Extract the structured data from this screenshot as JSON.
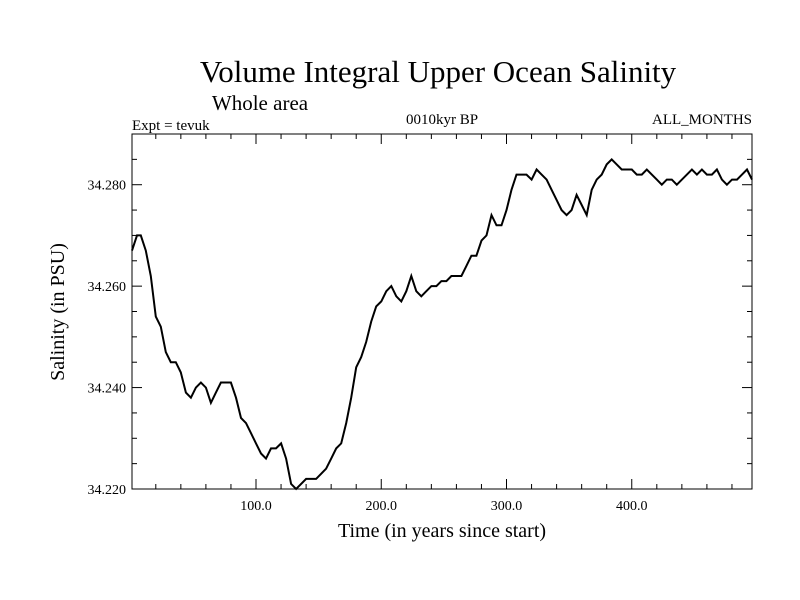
{
  "chart_data": {
    "type": "line",
    "title": "Volume Integral Upper Ocean Salinity",
    "subtitle": "Whole area",
    "expt_label": "Expt = tevuk",
    "period_label": "0010kyr BP",
    "months_label": "ALL_MONTHS",
    "xlabel": "Time (in years since start)",
    "ylabel": "Salinity (in PSU)",
    "xlim": [
      1,
      496
    ],
    "ylim": [
      34.22,
      34.29
    ],
    "x_ticks": [
      100,
      200,
      300,
      400
    ],
    "x_tick_labels": [
      "100.0",
      "200.0",
      "300.0",
      "400.0"
    ],
    "y_ticks": [
      34.22,
      34.24,
      34.26,
      34.28
    ],
    "y_tick_labels": [
      "34.220",
      "34.240",
      "34.260",
      "34.280"
    ],
    "grid": false,
    "series": [
      {
        "name": "Salinity",
        "x": [
          1,
          5,
          8,
          12,
          16,
          20,
          24,
          28,
          32,
          36,
          40,
          44,
          48,
          52,
          56,
          60,
          64,
          68,
          72,
          76,
          80,
          84,
          88,
          92,
          96,
          100,
          104,
          108,
          112,
          116,
          120,
          124,
          128,
          132,
          136,
          140,
          144,
          148,
          152,
          156,
          160,
          164,
          168,
          172,
          176,
          180,
          184,
          188,
          192,
          196,
          200,
          204,
          208,
          212,
          216,
          220,
          224,
          228,
          232,
          236,
          240,
          244,
          248,
          252,
          256,
          260,
          264,
          268,
          272,
          276,
          280,
          284,
          288,
          292,
          296,
          300,
          304,
          308,
          312,
          316,
          320,
          324,
          328,
          332,
          336,
          340,
          344,
          348,
          352,
          356,
          360,
          364,
          368,
          372,
          376,
          380,
          384,
          388,
          392,
          396,
          400,
          404,
          408,
          412,
          416,
          420,
          424,
          428,
          432,
          436,
          440,
          444,
          448,
          452,
          456,
          460,
          464,
          468,
          472,
          476,
          480,
          484,
          488,
          492,
          496
        ],
        "values": [
          34.267,
          34.27,
          34.27,
          34.267,
          34.262,
          34.254,
          34.252,
          34.247,
          34.245,
          34.245,
          34.243,
          34.239,
          34.238,
          34.24,
          34.241,
          34.24,
          34.237,
          34.239,
          34.241,
          34.241,
          34.241,
          34.238,
          34.234,
          34.233,
          34.231,
          34.229,
          34.227,
          34.226,
          34.228,
          34.228,
          34.229,
          34.226,
          34.221,
          34.22,
          34.221,
          34.222,
          34.222,
          34.222,
          34.223,
          34.224,
          34.226,
          34.228,
          34.229,
          34.233,
          34.238,
          34.244,
          34.246,
          34.249,
          34.253,
          34.256,
          34.257,
          34.259,
          34.26,
          34.258,
          34.257,
          34.259,
          34.262,
          34.259,
          34.258,
          34.259,
          34.26,
          34.26,
          34.261,
          34.261,
          34.262,
          34.262,
          34.262,
          34.264,
          34.266,
          34.266,
          34.269,
          34.27,
          34.274,
          34.272,
          34.272,
          34.275,
          34.279,
          34.282,
          34.282,
          34.282,
          34.281,
          34.283,
          34.282,
          34.281,
          34.279,
          34.277,
          34.275,
          34.274,
          34.275,
          34.278,
          34.276,
          34.274,
          34.279,
          34.281,
          34.282,
          34.284,
          34.285,
          34.284,
          34.283,
          34.283,
          34.283,
          34.282,
          34.282,
          34.283,
          34.282,
          34.281,
          34.28,
          34.281,
          34.281,
          34.28,
          34.281,
          34.282,
          34.283,
          34.282,
          34.283,
          34.282,
          34.282,
          34.283,
          34.281,
          34.28,
          34.281,
          34.281,
          34.282,
          34.283,
          34.281
        ]
      }
    ]
  }
}
